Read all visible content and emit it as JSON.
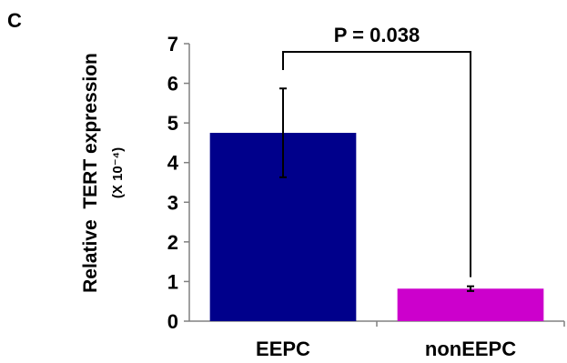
{
  "panel_label": "C",
  "chart_data": {
    "type": "bar",
    "categories": [
      "EEPC",
      "nonEEPC"
    ],
    "values": [
      4.75,
      0.82
    ],
    "errors": [
      1.12,
      0.06
    ],
    "ylabel": "Relative  TERT expression",
    "ylabel_units": "(X 10⁻⁴)",
    "ylim": [
      0,
      7
    ],
    "yticks": [
      "0",
      "1",
      "2",
      "3",
      "4",
      "5",
      "6",
      "7"
    ],
    "grid": false,
    "legend": "none",
    "colors": [
      "#00008B",
      "#CC00CC"
    ],
    "annotation": "P = 0.038"
  }
}
